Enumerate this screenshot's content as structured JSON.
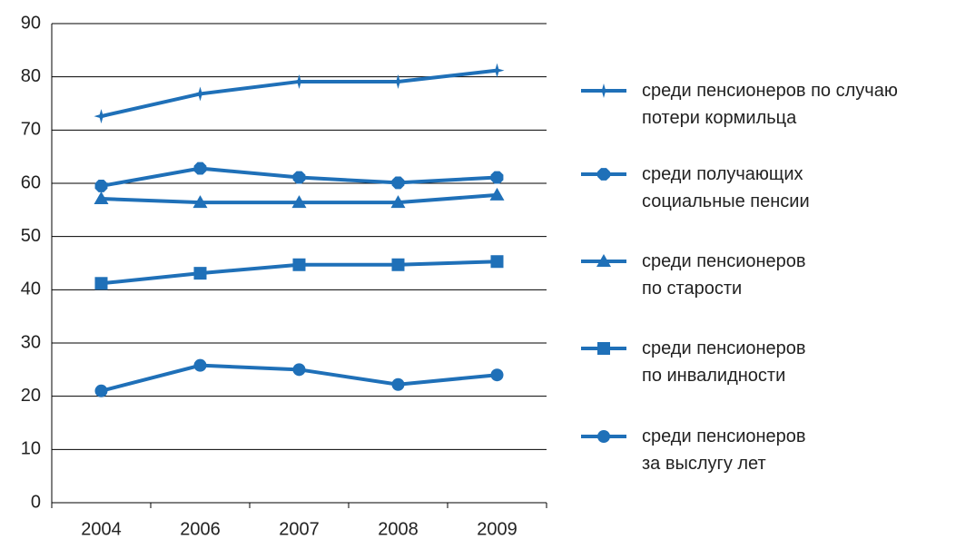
{
  "chart_data": {
    "type": "line",
    "categories": [
      "2004",
      "2006",
      "2007",
      "2008",
      "2009"
    ],
    "series": [
      {
        "name": "среди пенсионеров по случаю\nпотери кормильца",
        "color": "#1f70b8",
        "marker": "star",
        "values": [
          72.6,
          76.8,
          79.1,
          79.1,
          81.2
        ]
      },
      {
        "name": "среди получающих\nсоциальные пенсии",
        "color": "#1f70b8",
        "marker": "octagon",
        "values": [
          59.5,
          62.8,
          61.1,
          60.1,
          61.1
        ]
      },
      {
        "name": "среди пенсионеров\nпо старости",
        "color": "#1f70b8",
        "marker": "triangle",
        "values": [
          57.1,
          56.4,
          56.4,
          56.4,
          57.8
        ]
      },
      {
        "name": "среди пенсионеров\nпо инвалидности",
        "color": "#1f70b8",
        "marker": "square",
        "values": [
          41.2,
          43.1,
          44.7,
          44.7,
          45.3
        ]
      },
      {
        "name": "среди пенсионеров\nза выслугу лет",
        "color": "#1f70b8",
        "marker": "circle",
        "values": [
          21.0,
          25.8,
          25.0,
          22.2,
          24.0
        ]
      }
    ],
    "ylim": [
      0,
      90
    ],
    "yticks": [
      0,
      10,
      20,
      30,
      40,
      50,
      60,
      70,
      80,
      90
    ],
    "grid": true,
    "legend": "right"
  }
}
